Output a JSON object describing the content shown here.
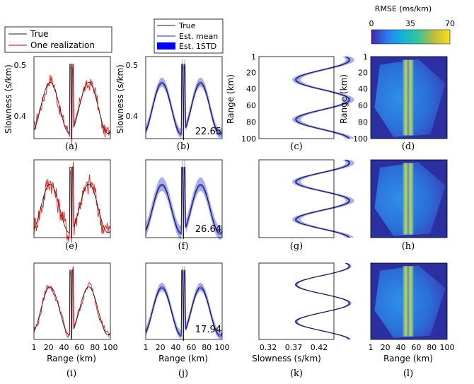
{
  "colors": {
    "true_line": "#222222",
    "realization_line": "#e8262b",
    "est_mean": "#2020d8",
    "est_std_band": "#a9aef0",
    "legend_std_fill": "#0000ff",
    "map_background": "#2b2fa0",
    "colorbar_stops": [
      "#3e26a8",
      "#2c7cf0",
      "#12b3d6",
      "#38c496",
      "#bfbc3a",
      "#f9e01a"
    ]
  },
  "legend_a": {
    "entries": [
      "True",
      "One realization"
    ]
  },
  "legend_b": {
    "entries": [
      "True",
      "Est. mean",
      "Est. 1STD"
    ]
  },
  "colorbar": {
    "title": "RMSE (ms/km)",
    "ticks": [
      "0",
      "35",
      "70"
    ],
    "range": [
      0,
      70
    ]
  },
  "rmse_labels": {
    "b": "22.65",
    "f": "26.64",
    "j": "17.94"
  },
  "panel_labels": {
    "a": "(a)",
    "b": "(b)",
    "c": "(c)",
    "d": "(d)",
    "e": "(e)",
    "f": "(f)",
    "g": "(g)",
    "h": "(h)",
    "i": "(i)",
    "j": "(j)",
    "k": "(k)",
    "l": "(l)"
  },
  "axes": {
    "slowness_ylabel": "Slowness (s/km)",
    "slowness_yticks": [
      "0.5",
      "0.4"
    ],
    "range_ylabel": "Range (km)",
    "range_yticks": [
      "1",
      "20",
      "40",
      "60",
      "80",
      "100"
    ],
    "range_xlabel": "Range (km)",
    "range_xticks": [
      "1",
      "20",
      "40",
      "60",
      "80",
      "100"
    ],
    "slowness_xlabel": "Slowness (s/km)",
    "slowness_xticks": [
      "0.32",
      "0.37",
      "0.42"
    ]
  },
  "chart_data": {
    "type": "line",
    "title": "",
    "xlabel": "Range (km)",
    "ylabel": "Slowness (s/km)",
    "x_range": [
      1,
      100
    ],
    "ylim": [
      0.36,
      0.52
    ],
    "true_profile": {
      "description": "sinusoidal slowness with sharp anomaly near 48-52 km",
      "samples_x": [
        1,
        10,
        22,
        30,
        38,
        45,
        48,
        50,
        52,
        55,
        62,
        72,
        82,
        90,
        100
      ],
      "samples_y": [
        0.38,
        0.42,
        0.47,
        0.44,
        0.39,
        0.37,
        0.5,
        0.36,
        0.5,
        0.37,
        0.42,
        0.47,
        0.43,
        0.39,
        0.37
      ]
    },
    "rows": [
      {
        "realization": "row 1",
        "est_rmse": "22.65"
      },
      {
        "realization": "row 2",
        "est_rmse": "26.64"
      },
      {
        "realization": "row 3",
        "est_rmse": "17.94"
      }
    ],
    "legend": [
      "True",
      "One realization",
      "Est. mean",
      "Est. 1STD"
    ]
  }
}
